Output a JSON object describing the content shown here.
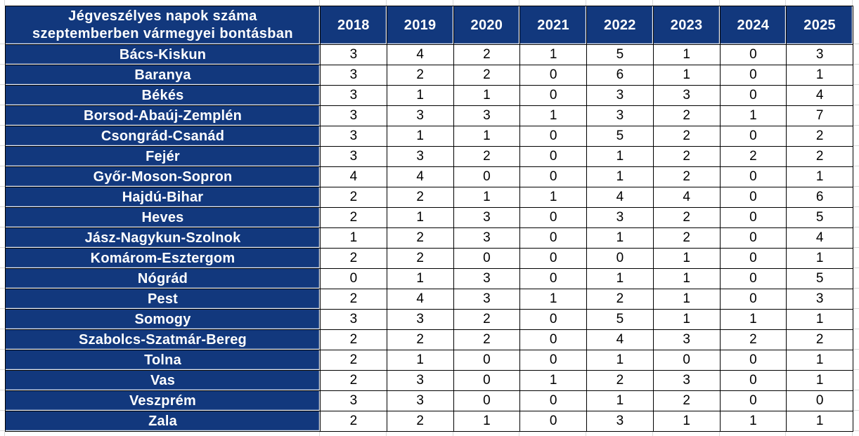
{
  "chart_data": {
    "type": "table",
    "title": "Jégveszélyes napok száma szeptemberben vármegyei bontásban",
    "title_lines": [
      "Jégveszélyes napok száma",
      "szeptemberben vármegyei bontásban"
    ],
    "columns": [
      "2018",
      "2019",
      "2020",
      "2021",
      "2022",
      "2023",
      "2024",
      "2025"
    ],
    "rows": [
      {
        "name": "Bács-Kiskun",
        "values": [
          3,
          4,
          2,
          1,
          5,
          1,
          0,
          3
        ]
      },
      {
        "name": "Baranya",
        "values": [
          3,
          2,
          2,
          0,
          6,
          1,
          0,
          1
        ]
      },
      {
        "name": "Békés",
        "values": [
          3,
          1,
          1,
          0,
          3,
          3,
          0,
          4
        ]
      },
      {
        "name": "Borsod-Abaúj-Zemplén",
        "values": [
          3,
          3,
          3,
          1,
          3,
          2,
          1,
          7
        ]
      },
      {
        "name": "Csongrád-Csanád",
        "values": [
          3,
          1,
          1,
          0,
          5,
          2,
          0,
          2
        ]
      },
      {
        "name": "Fejér",
        "values": [
          3,
          3,
          2,
          0,
          1,
          2,
          2,
          2
        ]
      },
      {
        "name": "Győr-Moson-Sopron",
        "values": [
          4,
          4,
          0,
          0,
          1,
          2,
          0,
          1
        ]
      },
      {
        "name": "Hajdú-Bihar",
        "values": [
          2,
          2,
          1,
          1,
          4,
          4,
          0,
          6
        ]
      },
      {
        "name": "Heves",
        "values": [
          2,
          1,
          3,
          0,
          3,
          2,
          0,
          5
        ]
      },
      {
        "name": "Jász-Nagykun-Szolnok",
        "values": [
          1,
          2,
          3,
          0,
          1,
          2,
          0,
          4
        ]
      },
      {
        "name": "Komárom-Esztergom",
        "values": [
          2,
          2,
          0,
          0,
          0,
          1,
          0,
          1
        ]
      },
      {
        "name": "Nógrád",
        "values": [
          0,
          1,
          3,
          0,
          1,
          1,
          0,
          5
        ]
      },
      {
        "name": "Pest",
        "values": [
          2,
          4,
          3,
          1,
          2,
          1,
          0,
          3
        ]
      },
      {
        "name": "Somogy",
        "values": [
          3,
          3,
          2,
          0,
          5,
          1,
          1,
          1
        ]
      },
      {
        "name": "Szabolcs-Szatmár-Bereg",
        "values": [
          2,
          2,
          2,
          0,
          4,
          3,
          2,
          2
        ]
      },
      {
        "name": "Tolna",
        "values": [
          2,
          1,
          0,
          0,
          1,
          0,
          0,
          1
        ]
      },
      {
        "name": "Vas",
        "values": [
          2,
          3,
          0,
          1,
          2,
          3,
          0,
          1
        ]
      },
      {
        "name": "Veszprém",
        "values": [
          3,
          3,
          0,
          0,
          1,
          2,
          0,
          0
        ]
      },
      {
        "name": "Zala",
        "values": [
          2,
          2,
          1,
          0,
          3,
          1,
          1,
          1
        ]
      }
    ]
  },
  "colors": {
    "header_blue": "#12387d",
    "cell_border": "#000000",
    "sheet_gridline": "#d8d8d8",
    "header_text": "#ffffff",
    "cell_text": "#000000"
  }
}
